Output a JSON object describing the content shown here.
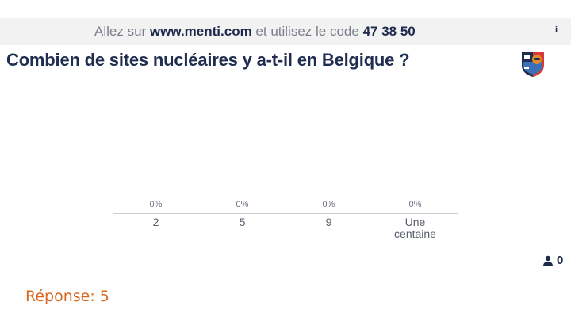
{
  "header": {
    "join_prefix": "Allez sur ",
    "join_url": "www.menti.com",
    "join_middle": " et utilisez le code ",
    "join_code": "47 38 50",
    "info_glyph": "i"
  },
  "question": {
    "title": "Combien de sites nucléaires y a-t-il en Belgique ?"
  },
  "logo": {
    "icon": "ieg-logo-icon",
    "colors": {
      "red": "#d93a35",
      "navy": "#1f2d4f",
      "orange": "#e08a2a"
    }
  },
  "chart_data": {
    "type": "bar",
    "categories": [
      "2",
      "5",
      "9",
      "Une centaine"
    ],
    "values": [
      0,
      0,
      0,
      0
    ],
    "value_labels": [
      "0%",
      "0%",
      "0%",
      "0%"
    ],
    "ylim": [
      0,
      100
    ]
  },
  "responses": {
    "icon": "user-icon",
    "count": "0"
  },
  "answer": {
    "text": "Réponse: 5"
  },
  "colors": {
    "title": "#1f2d4f",
    "answer": "#d9661f",
    "topbar": "#f2f2f3"
  }
}
